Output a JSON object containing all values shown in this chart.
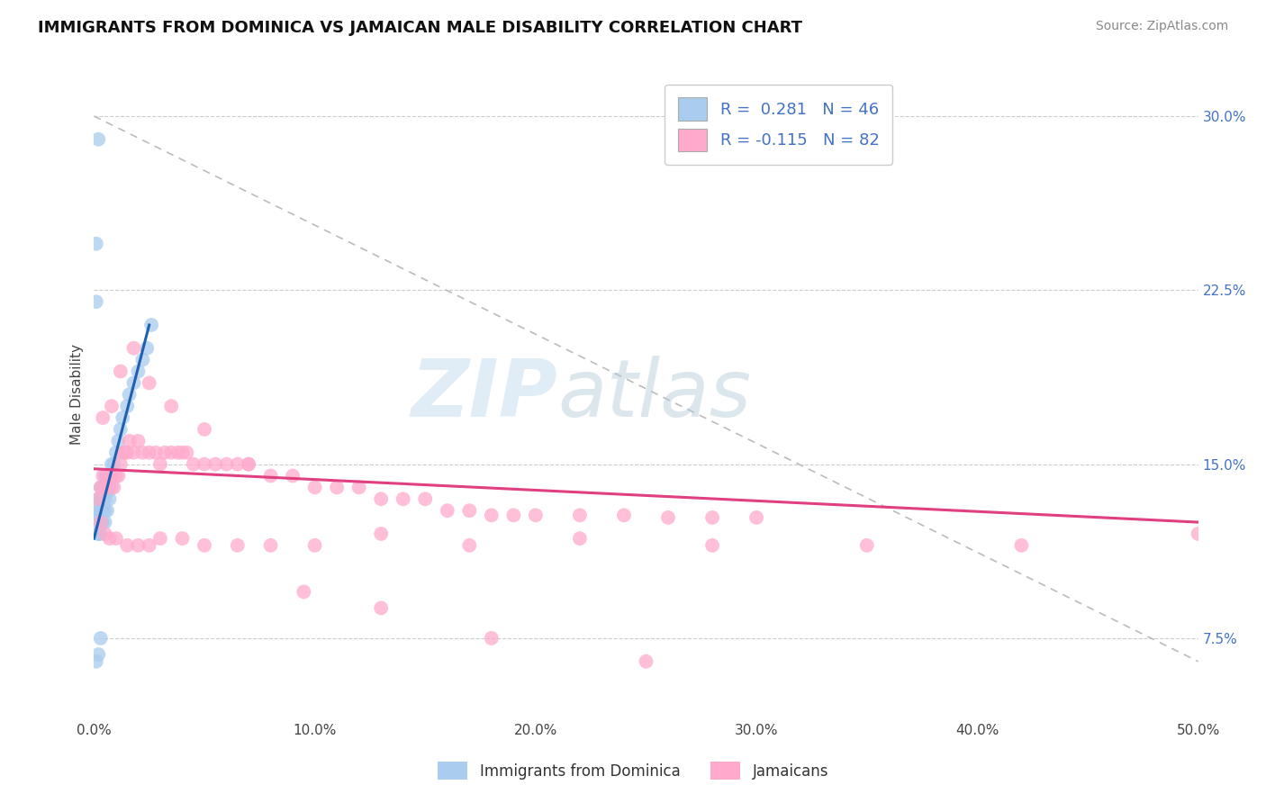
{
  "title": "IMMIGRANTS FROM DOMINICA VS JAMAICAN MALE DISABILITY CORRELATION CHART",
  "source": "Source: ZipAtlas.com",
  "ylabel": "Male Disability",
  "legend_label1": "Immigrants from Dominica",
  "legend_label2": "Jamaicans",
  "R1": 0.281,
  "N1": 46,
  "R2": -0.115,
  "N2": 82,
  "xlim": [
    0.0,
    0.5
  ],
  "ylim": [
    0.04,
    0.32
  ],
  "xticks": [
    0.0,
    0.1,
    0.2,
    0.3,
    0.4,
    0.5
  ],
  "xtick_labels": [
    "0.0%",
    "10.0%",
    "20.0%",
    "30.0%",
    "40.0%",
    "50.0%"
  ],
  "yticks": [
    0.075,
    0.15,
    0.225,
    0.3
  ],
  "ytick_labels": [
    "7.5%",
    "15.0%",
    "22.5%",
    "30.0%"
  ],
  "color1": "#aaccee",
  "color2": "#ffaacc",
  "line_color1": "#2060b0",
  "line_color2": "#e04080",
  "background_color": "#ffffff",
  "watermark_zip": "ZIP",
  "watermark_atlas": "atlas",
  "blue_scatter_x": [
    0.001,
    0.001,
    0.001,
    0.002,
    0.002,
    0.002,
    0.002,
    0.002,
    0.003,
    0.003,
    0.003,
    0.003,
    0.003,
    0.004,
    0.004,
    0.004,
    0.004,
    0.005,
    0.005,
    0.005,
    0.005,
    0.006,
    0.006,
    0.006,
    0.007,
    0.007,
    0.008,
    0.008,
    0.009,
    0.01,
    0.011,
    0.012,
    0.013,
    0.015,
    0.016,
    0.018,
    0.02,
    0.022,
    0.024,
    0.026,
    0.001,
    0.001,
    0.002,
    0.003,
    0.002,
    0.001
  ],
  "blue_scatter_y": [
    0.125,
    0.128,
    0.13,
    0.12,
    0.125,
    0.13,
    0.135,
    0.12,
    0.12,
    0.125,
    0.13,
    0.135,
    0.14,
    0.125,
    0.13,
    0.135,
    0.14,
    0.125,
    0.13,
    0.135,
    0.145,
    0.13,
    0.138,
    0.145,
    0.135,
    0.145,
    0.14,
    0.15,
    0.15,
    0.155,
    0.16,
    0.165,
    0.17,
    0.175,
    0.18,
    0.185,
    0.19,
    0.195,
    0.2,
    0.21,
    0.22,
    0.245,
    0.29,
    0.075,
    0.068,
    0.065
  ],
  "pink_scatter_x": [
    0.002,
    0.003,
    0.004,
    0.005,
    0.006,
    0.007,
    0.008,
    0.009,
    0.01,
    0.011,
    0.012,
    0.013,
    0.014,
    0.015,
    0.016,
    0.018,
    0.02,
    0.022,
    0.025,
    0.028,
    0.03,
    0.032,
    0.035,
    0.038,
    0.04,
    0.042,
    0.045,
    0.05,
    0.055,
    0.06,
    0.065,
    0.07,
    0.08,
    0.09,
    0.1,
    0.11,
    0.12,
    0.13,
    0.14,
    0.15,
    0.16,
    0.17,
    0.18,
    0.19,
    0.2,
    0.22,
    0.24,
    0.26,
    0.28,
    0.3,
    0.003,
    0.005,
    0.007,
    0.01,
    0.015,
    0.02,
    0.025,
    0.03,
    0.04,
    0.05,
    0.065,
    0.08,
    0.1,
    0.13,
    0.17,
    0.22,
    0.28,
    0.35,
    0.42,
    0.5,
    0.004,
    0.008,
    0.012,
    0.018,
    0.025,
    0.035,
    0.05,
    0.07,
    0.095,
    0.13,
    0.18,
    0.25
  ],
  "pink_scatter_y": [
    0.135,
    0.14,
    0.145,
    0.14,
    0.145,
    0.14,
    0.145,
    0.14,
    0.145,
    0.145,
    0.15,
    0.155,
    0.155,
    0.155,
    0.16,
    0.155,
    0.16,
    0.155,
    0.155,
    0.155,
    0.15,
    0.155,
    0.155,
    0.155,
    0.155,
    0.155,
    0.15,
    0.15,
    0.15,
    0.15,
    0.15,
    0.15,
    0.145,
    0.145,
    0.14,
    0.14,
    0.14,
    0.135,
    0.135,
    0.135,
    0.13,
    0.13,
    0.128,
    0.128,
    0.128,
    0.128,
    0.128,
    0.127,
    0.127,
    0.127,
    0.125,
    0.12,
    0.118,
    0.118,
    0.115,
    0.115,
    0.115,
    0.118,
    0.118,
    0.115,
    0.115,
    0.115,
    0.115,
    0.12,
    0.115,
    0.118,
    0.115,
    0.115,
    0.115,
    0.12,
    0.17,
    0.175,
    0.19,
    0.2,
    0.185,
    0.175,
    0.165,
    0.15,
    0.095,
    0.088,
    0.075,
    0.065
  ],
  "blue_line_x": [
    0.0,
    0.025
  ],
  "blue_line_y": [
    0.118,
    0.21
  ],
  "pink_line_x": [
    0.0,
    0.5
  ],
  "pink_line_y": [
    0.148,
    0.125
  ],
  "ref_line_x": [
    0.0,
    0.5
  ],
  "ref_line_y": [
    0.3,
    0.065
  ]
}
